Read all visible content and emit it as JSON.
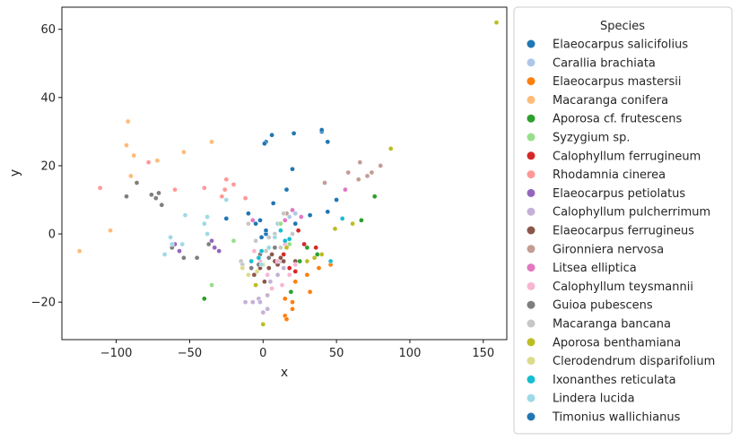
{
  "chart_data": {
    "type": "scatter",
    "xlabel": "x",
    "ylabel": "y",
    "xlim": [
      -137,
      166
    ],
    "ylim": [
      -31,
      66.5
    ],
    "xticks": [
      -100,
      -50,
      0,
      50,
      100,
      150
    ],
    "yticks": [
      -20,
      0,
      20,
      40,
      60
    ],
    "grid": false,
    "legend": {
      "title": "Species",
      "placement": "right-outside"
    },
    "series": [
      {
        "name": "Elaeocarpus salicifolius",
        "color": "#1f77b4",
        "points": [
          [
            2,
            27
          ],
          [
            6,
            29
          ],
          [
            21,
            29.5
          ],
          [
            20,
            19
          ],
          [
            40,
            30
          ],
          [
            44,
            27
          ],
          [
            16,
            13
          ],
          [
            40,
            30.5
          ],
          [
            1,
            26.5
          ]
        ]
      },
      {
        "name": "Carallia brachiata",
        "color": "#aec7e8",
        "points": [
          [
            18,
            5
          ],
          [
            22,
            6
          ],
          [
            10,
            3
          ]
        ]
      },
      {
        "name": "Elaeocarpus mastersii",
        "color": "#ff7f0e",
        "points": [
          [
            15,
            -24
          ],
          [
            20,
            -22
          ],
          [
            32,
            -17
          ],
          [
            46,
            -9
          ],
          [
            38,
            -10
          ],
          [
            15,
            -19
          ],
          [
            22,
            -14
          ],
          [
            30,
            -12
          ],
          [
            16,
            -25
          ],
          [
            20,
            -20
          ]
        ]
      },
      {
        "name": "Macaranga conifera",
        "color": "#ffbb78",
        "points": [
          [
            -92,
            33
          ],
          [
            -93,
            26
          ],
          [
            -88,
            23
          ],
          [
            -72,
            21.5
          ],
          [
            -54,
            24
          ],
          [
            -35,
            27
          ],
          [
            -90,
            17
          ],
          [
            -125,
            -5
          ],
          [
            -104,
            1
          ]
        ]
      },
      {
        "name": "Aporosa cf. frutescens",
        "color": "#2ca02c",
        "points": [
          [
            76,
            11
          ],
          [
            67,
            4
          ],
          [
            37,
            -6
          ],
          [
            30,
            -4
          ],
          [
            19,
            -17
          ],
          [
            -40,
            -19
          ],
          [
            25,
            -8
          ]
        ]
      },
      {
        "name": "Syzygium sp.",
        "color": "#98df8a",
        "points": [
          [
            -35,
            -15
          ],
          [
            -20,
            -2
          ],
          [
            18,
            -3
          ],
          [
            12,
            3
          ]
        ]
      },
      {
        "name": "Calophyllum ferrugineum",
        "color": "#d62728",
        "points": [
          [
            22,
            -11
          ],
          [
            18,
            -10
          ],
          [
            36,
            -4
          ],
          [
            28,
            -3
          ],
          [
            14,
            -6
          ],
          [
            24,
            1
          ]
        ]
      },
      {
        "name": "Rhodamnia cinerea",
        "color": "#ff9896",
        "points": [
          [
            -111,
            13.5
          ],
          [
            -78,
            21
          ],
          [
            -60,
            13
          ],
          [
            -40,
            13.5
          ],
          [
            -20,
            14.5
          ],
          [
            -26,
            13
          ],
          [
            -25,
            16
          ],
          [
            -28,
            11
          ],
          [
            -12,
            10.5
          ]
        ]
      },
      {
        "name": "Elaeocarpus petiolatus",
        "color": "#9467bd",
        "points": [
          [
            -35,
            -2
          ],
          [
            -33,
            -4
          ],
          [
            -57,
            -5
          ],
          [
            -60,
            -3
          ],
          [
            -30,
            -5
          ]
        ]
      },
      {
        "name": "Calophyllum pulcherrimum",
        "color": "#c5b0d5",
        "points": [
          [
            -7,
            -20
          ],
          [
            -3,
            -19
          ],
          [
            3,
            -22
          ],
          [
            0,
            -23
          ],
          [
            10,
            -12
          ],
          [
            12,
            -8
          ],
          [
            -12,
            -20
          ],
          [
            3,
            -18
          ],
          [
            14,
            -10
          ],
          [
            -2,
            -20
          ],
          [
            5,
            -14
          ]
        ]
      },
      {
        "name": "Elaeocarpus ferrugineus",
        "color": "#8c564b",
        "points": [
          [
            4,
            -10
          ],
          [
            8,
            -8
          ],
          [
            -6,
            -12
          ],
          [
            -2,
            -10
          ],
          [
            14,
            -8
          ],
          [
            10,
            -9
          ],
          [
            18,
            -12
          ],
          [
            22,
            -8
          ],
          [
            6,
            -6
          ],
          [
            12,
            -7
          ],
          [
            1,
            -14
          ]
        ]
      },
      {
        "name": "Gironniera nervosa",
        "color": "#c49c94",
        "points": [
          [
            58,
            18
          ],
          [
            65,
            16
          ],
          [
            66,
            21
          ],
          [
            71,
            17
          ],
          [
            74,
            18
          ],
          [
            80,
            20
          ],
          [
            42,
            15
          ],
          [
            16,
            6
          ]
        ]
      },
      {
        "name": "Litsea elliptica",
        "color": "#e377c2",
        "points": [
          [
            56,
            13
          ],
          [
            20,
            7
          ],
          [
            26,
            5
          ],
          [
            15,
            4
          ],
          [
            -7,
            4
          ]
        ]
      },
      {
        "name": "Calophyllum teysmannii",
        "color": "#f7b6d2",
        "points": [
          [
            10,
            -8
          ],
          [
            15,
            -3
          ],
          [
            18,
            -12
          ],
          [
            22,
            -9
          ],
          [
            8,
            -4
          ],
          [
            3,
            -12
          ],
          [
            -2,
            -8
          ],
          [
            6,
            -16
          ],
          [
            13,
            -15
          ],
          [
            -6,
            -5
          ]
        ]
      },
      {
        "name": "Guioa pubescens",
        "color": "#7f7f7f",
        "points": [
          [
            -93,
            11
          ],
          [
            -86,
            15
          ],
          [
            -76,
            11.5
          ],
          [
            -71,
            12
          ],
          [
            -73,
            10.5
          ],
          [
            -69,
            8.5
          ],
          [
            -62,
            -4
          ],
          [
            -54,
            -7
          ],
          [
            -45,
            -7
          ],
          [
            -37,
            -3
          ],
          [
            -8,
            -10
          ],
          [
            -3,
            -9
          ],
          [
            4,
            -7
          ],
          [
            -2,
            -6
          ],
          [
            8,
            -4
          ]
        ]
      },
      {
        "name": "Macaranga bancana",
        "color": "#c7c7c7",
        "points": [
          [
            -15,
            -8
          ],
          [
            -10,
            3
          ],
          [
            -5,
            -2
          ],
          [
            2,
            -5
          ],
          [
            4,
            -1
          ],
          [
            8,
            0
          ],
          [
            -14,
            -9
          ],
          [
            12,
            -4
          ],
          [
            20,
            0
          ],
          [
            14,
            6
          ]
        ]
      },
      {
        "name": "Aporosa benthamiana",
        "color": "#bcbd22",
        "points": [
          [
            159,
            62
          ],
          [
            87,
            25
          ],
          [
            61,
            3
          ],
          [
            49,
            1.5
          ],
          [
            40,
            -6
          ],
          [
            30,
            -8
          ],
          [
            0,
            -26.5
          ],
          [
            -5,
            -15
          ],
          [
            -8,
            -8
          ],
          [
            16,
            -4
          ],
          [
            35,
            -7
          ]
        ]
      },
      {
        "name": "Clerodendrum disparifolium",
        "color": "#dbdb8d",
        "points": [
          [
            -10,
            -12
          ],
          [
            -4,
            -11
          ],
          [
            0,
            -9
          ],
          [
            -14,
            -10
          ]
        ]
      },
      {
        "name": "Ixonanthes reticulata",
        "color": "#17becf",
        "points": [
          [
            54,
            4.5
          ],
          [
            46,
            -8
          ],
          [
            15,
            -2
          ],
          [
            18,
            -1.5
          ],
          [
            -3,
            -7
          ],
          [
            -8,
            -8
          ],
          [
            -1,
            -5
          ],
          [
            12,
            1
          ]
        ]
      },
      {
        "name": "Lindera lucida",
        "color": "#9edae5",
        "points": [
          [
            -53,
            5.5
          ],
          [
            -38,
            5
          ],
          [
            -63,
            -1
          ],
          [
            -62,
            -3
          ],
          [
            -67,
            -6
          ],
          [
            -55,
            -3
          ],
          [
            -25,
            10
          ],
          [
            -40,
            3
          ],
          [
            -38,
            0
          ],
          [
            -1,
            -9
          ],
          [
            4,
            -4
          ],
          [
            8,
            -1
          ]
        ]
      },
      {
        "name": "Timonius wallichianus",
        "color": "#1f77b4",
        "points": [
          [
            -25,
            4.5
          ],
          [
            -10,
            6
          ],
          [
            -2,
            4
          ],
          [
            -1,
            -1
          ],
          [
            2,
            0
          ],
          [
            7,
            9
          ],
          [
            32,
            5.5
          ],
          [
            44,
            6.5
          ],
          [
            50,
            10
          ],
          [
            22,
            3
          ],
          [
            2,
            1
          ],
          [
            -5,
            3
          ]
        ]
      }
    ]
  }
}
